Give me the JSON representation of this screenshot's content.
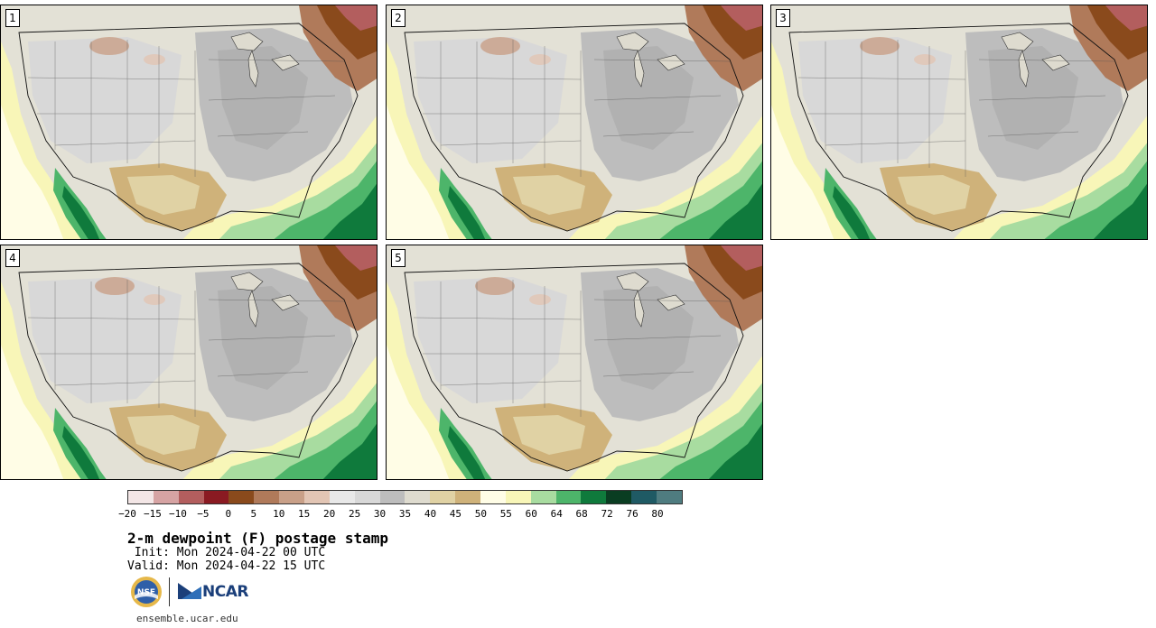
{
  "panels": [
    {
      "label": "1"
    },
    {
      "label": "2"
    },
    {
      "label": "3"
    },
    {
      "label": "4"
    },
    {
      "label": "5"
    }
  ],
  "colorbar": {
    "colors": [
      "#f3e6e6",
      "#d6a3a3",
      "#b35e5e",
      "#8a1a22",
      "#8a4a1c",
      "#b07a5a",
      "#c9a088",
      "#e2c5b4",
      "#e8e8e8",
      "#d8d8d8",
      "#bdbdbd",
      "#dedbcf",
      "#e0d2a4",
      "#cfb27a",
      "#fffde6",
      "#f8f6b8",
      "#a8dca0",
      "#4db56a",
      "#0f7a3c",
      "#0a3d22",
      "#1f5a64",
      "#4f7c80"
    ],
    "ticks": [
      "−20",
      "−15",
      "−10",
      "−5",
      "0",
      "5",
      "10",
      "15",
      "20",
      "25",
      "30",
      "35",
      "40",
      "45",
      "50",
      "55",
      "60",
      "64",
      "68",
      "72",
      "76",
      "80"
    ]
  },
  "title": "2-m dewpoint (F) postage stamp",
  "init": " Init: Mon 2024-04-22 00 UTC",
  "valid": "Valid: Mon 2024-04-22 15 UTC",
  "url": "ensemble.ucar.edu",
  "logos": {
    "nsf": "NSF",
    "ncar": "NCAR"
  }
}
